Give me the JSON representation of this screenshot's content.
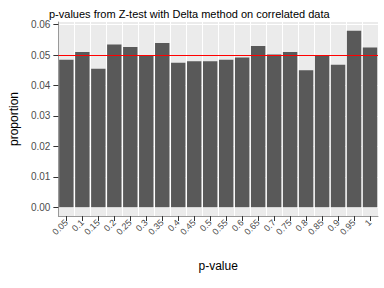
{
  "chart_data": {
    "type": "bar",
    "title": "p-values from Z-test with Delta method on correlated data",
    "x_label": "p-value",
    "y_label": "proportion",
    "categories": [
      "0.05",
      "0.1",
      "0.15",
      "0.2",
      "0.25",
      "0.3",
      "0.35",
      "0.4",
      "0.45",
      "0.5",
      "0.55",
      "0.6",
      "0.65",
      "0.7",
      "0.75",
      "0.8",
      "0.85",
      "0.9",
      "0.95",
      "1"
    ],
    "values": [
      0.0485,
      0.051,
      0.0455,
      0.0535,
      0.0527,
      0.05,
      0.054,
      0.0475,
      0.048,
      0.048,
      0.0485,
      0.0492,
      0.053,
      0.0502,
      0.051,
      0.045,
      0.05,
      0.0468,
      0.058,
      0.0525
    ],
    "color": "#595959",
    "reference_line": {
      "value": 0.05,
      "color": "#ff0000"
    },
    "ylim": [
      -0.0029,
      0.0609
    ],
    "yticks": [
      {
        "value": 0,
        "label": "0.00"
      },
      {
        "value": 0.01,
        "label": "0.01"
      },
      {
        "value": 0.02,
        "label": "0.02"
      },
      {
        "value": 0.03,
        "label": "0.03"
      },
      {
        "value": 0.04,
        "label": "0.04"
      },
      {
        "value": 0.05,
        "label": "0.05"
      },
      {
        "value": 0.06,
        "label": "0.06"
      }
    ],
    "grid": true
  }
}
